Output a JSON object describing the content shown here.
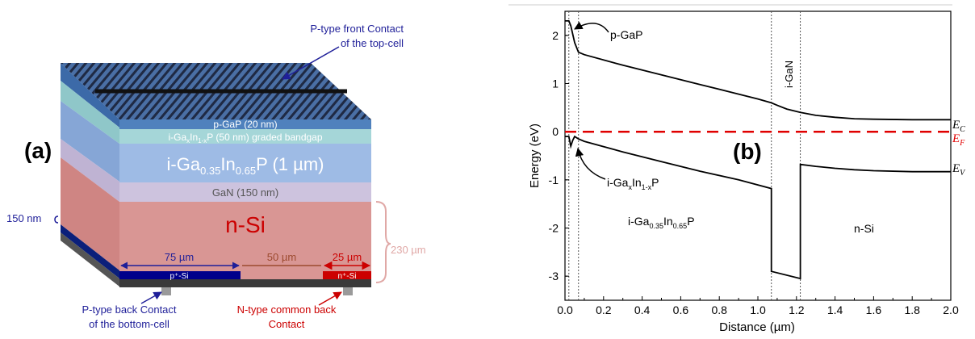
{
  "panel_a": {
    "label": "(a)",
    "layers": {
      "pgap": "p-GaP (20 nm)",
      "graded_prefix": "i-Ga",
      "graded_x": "x",
      "graded_mid": "In",
      "graded_1x": "1-x",
      "graded_suffix": "P (50 nm) graded bandgap",
      "main_prefix": "i-Ga",
      "main_sub1": "0.35",
      "main_mid": "In",
      "main_sub2": "0.65",
      "main_suffix": "P (1 µm)",
      "gan": "GaN (150 nm)",
      "nsi": "n-Si"
    },
    "dims": {
      "d75": "75 µm",
      "d50": "50 µm",
      "d25": "25 µm",
      "d150": "150 nm",
      "d230": "230 µm"
    },
    "contacts": {
      "p_plus_si": "p⁺-Si",
      "n_plus_si": "n⁺-Si"
    },
    "callouts": {
      "front_line1": "P-type front Contact",
      "front_line2": "of the top-cell",
      "back_p_line1": "P-type back Contact",
      "back_p_line2": "of the bottom-cell",
      "back_n_line1": "N-type common back",
      "back_n_line2": "Contact"
    },
    "colors": {
      "front_grid": "#1f2a44",
      "pgap": "#4f81bd",
      "graded": "#a5d6d8",
      "main_absorber": "#9ebbe5",
      "gan": "#cdc3de",
      "n_si": "#d99694",
      "p_contact": "#00008b",
      "n_contact": "#cc0000",
      "callout_blue": "#1f1f99",
      "callout_red": "#cc0000",
      "dim_brown": "#9c4a2f"
    }
  },
  "panel_b": {
    "label": "(b)",
    "region_labels": {
      "pgap": "p-GaP",
      "graded_prefix": "i-Ga",
      "graded_x": "x",
      "graded_mid": "In",
      "graded_1x": "1-x",
      "graded_suffix": "P",
      "main_prefix": "i-Ga",
      "main_sub1": "0.35",
      "main_mid": "In",
      "main_sub2": "0.65",
      "main_suffix": "P",
      "gan": "i-GaN",
      "nsi": "n-Si"
    },
    "band_labels": {
      "ec_main": "E",
      "ec_sub": "C",
      "ef_main": "E",
      "ef_sub": "F",
      "ev_main": "E",
      "ev_sub": "V"
    }
  },
  "chart_data": {
    "type": "line",
    "xlabel": "Distance (µm)",
    "ylabel": "Energy (eV)",
    "xlim": [
      0.0,
      2.0
    ],
    "ylim": [
      -3.5,
      2.5
    ],
    "xticks": [
      0.0,
      0.2,
      0.4,
      0.6,
      0.8,
      1.0,
      1.2,
      1.4,
      1.6,
      1.8,
      2.0
    ],
    "xtick_labels": [
      "0.0",
      "0.2",
      "0.4",
      "0.6",
      "0.8",
      "1.0",
      "1.2",
      "1.4",
      "1.6",
      "1.8",
      "2.0"
    ],
    "yticks": [
      -3,
      -2,
      -1,
      0,
      1,
      2
    ],
    "ytick_labels": [
      "-3",
      "-2",
      "-1",
      "0",
      "1",
      "2"
    ],
    "boundaries": [
      0.02,
      0.07,
      1.07,
      1.22
    ],
    "series": [
      {
        "name": "E_C",
        "color": "#000000",
        "x": [
          0.0,
          0.02,
          0.03,
          0.05,
          0.07,
          0.1,
          0.3,
          0.5,
          0.7,
          0.9,
          1.0,
          1.07,
          1.1,
          1.15,
          1.22,
          1.3,
          1.4,
          1.5,
          1.6,
          1.8,
          2.0
        ],
        "y": [
          2.3,
          2.3,
          2.2,
          1.85,
          1.65,
          1.6,
          1.38,
          1.18,
          0.98,
          0.78,
          0.68,
          0.6,
          0.55,
          0.47,
          0.4,
          0.34,
          0.3,
          0.27,
          0.26,
          0.25,
          0.25
        ]
      },
      {
        "name": "E_F",
        "color": "#e00000",
        "dashed": true,
        "x": [
          0.0,
          2.0
        ],
        "y": [
          0.0,
          0.0
        ]
      },
      {
        "name": "E_V",
        "color": "#000000",
        "x": [
          0.0,
          0.02,
          0.03,
          0.04,
          0.05,
          0.07,
          0.1,
          0.3,
          0.5,
          0.7,
          0.9,
          1.07,
          1.07,
          1.22,
          1.22,
          1.3,
          1.4,
          1.5,
          1.6,
          1.8,
          2.0
        ],
        "y": [
          -0.1,
          -0.1,
          -0.3,
          -0.18,
          -0.1,
          -0.15,
          -0.2,
          -0.42,
          -0.62,
          -0.82,
          -1.0,
          -1.18,
          -2.9,
          -3.05,
          -0.68,
          -0.72,
          -0.76,
          -0.79,
          -0.81,
          -0.83,
          -0.83
        ]
      }
    ]
  }
}
